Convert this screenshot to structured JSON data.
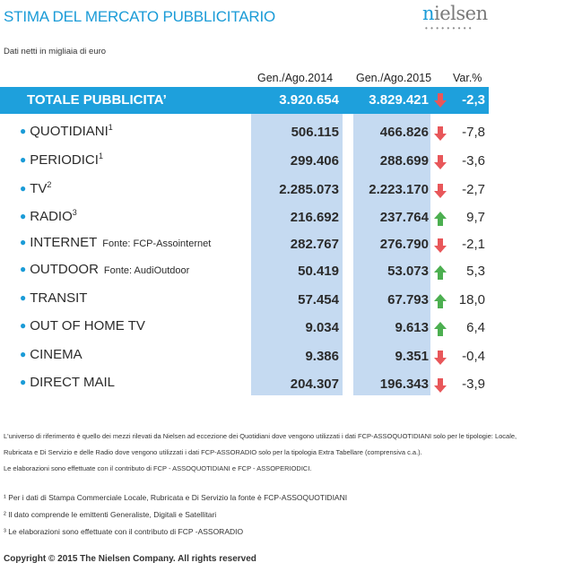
{
  "header": {
    "title": "STIMA DEL MERCATO PUBBLICITARIO",
    "logo_text_first": "n",
    "logo_text_rest": "ielsen",
    "logo_dots": "•••••••••",
    "subtitle": "Dati netti in migliaia di euro"
  },
  "table": {
    "columns": [
      "Gen./Ago.2014",
      "Gen./Ago.2015",
      "Var.%"
    ],
    "total": {
      "label": "TOTALE PUBBLICITA’",
      "v2014": "3.920.654",
      "v2015": "3.829.421",
      "trend": "down",
      "var": "-2,3"
    },
    "rows": [
      {
        "label": "QUOTIDIANI",
        "sup": "1",
        "source": "",
        "v2014": "506.115",
        "v2015": "466.826",
        "trend": "down",
        "var": "-7,8"
      },
      {
        "label": "PERIODICI",
        "sup": "1",
        "source": "",
        "v2014": "299.406",
        "v2015": "288.699",
        "trend": "down",
        "var": "-3,6"
      },
      {
        "label": "TV",
        "sup": "2",
        "source": "",
        "v2014": "2.285.073",
        "v2015": "2.223.170",
        "trend": "down",
        "var": "-2,7"
      },
      {
        "label": "RADIO",
        "sup": "3",
        "source": "",
        "v2014": "216.692",
        "v2015": "237.764",
        "trend": "up",
        "var": "9,7"
      },
      {
        "label": "INTERNET",
        "sup": "",
        "source": "Fonte: FCP-Assointernet",
        "v2014": "282.767",
        "v2015": "276.790",
        "trend": "down",
        "var": "-2,1"
      },
      {
        "label": "OUTDOOR",
        "sup": "",
        "source": "Fonte: AudiOutdoor",
        "v2014": "50.419",
        "v2015": "53.073",
        "trend": "up",
        "var": "5,3"
      },
      {
        "label": "TRANSIT",
        "sup": "",
        "source": "",
        "v2014": "57.454",
        "v2015": "67.793",
        "trend": "up",
        "var": "18,0"
      },
      {
        "label": "OUT OF HOME TV",
        "sup": "",
        "source": "",
        "v2014": "9.034",
        "v2015": "9.613",
        "trend": "up",
        "var": "6,4"
      },
      {
        "label": "CINEMA",
        "sup": "",
        "source": "",
        "v2014": "9.386",
        "v2015": "9.351",
        "trend": "down",
        "var": "-0,4"
      },
      {
        "label": "DIRECT MAIL",
        "sup": "",
        "source": "",
        "v2014": "204.307",
        "v2015": "196.343",
        "trend": "down",
        "var": "-3,9"
      }
    ]
  },
  "notes": [
    "L'universo di riferimento è quello dei mezzi rilevati da Nielsen ad eccezione dei Quotidiani dove vengono utilizzati i dati FCP-ASSOQUOTIDIANI solo per le tipologie: Locale,",
    "Rubricata e Di Servizio e delle Radio dove vengono utilizzati i dati FCP-ASSORADIO solo per la tipologia Extra Tabellare (comprensiva c.a.).",
    "Le elaborazioni sono effettuate con il contributo di FCP - ASSOQUOTIDIANI e FCP - ASSOPERIODICI."
  ],
  "footnotes": [
    "¹  Per i dati di Stampa Commerciale Locale, Rubricata e Di Servizio la fonte è  FCP-ASSOQUOTIDIANI",
    "²  Il dato comprende le emittenti Generaliste, Digitali e Satellitari",
    "³  Le elaborazioni sono effettuate con il contributo di FCP -ASSORADIO"
  ],
  "copyright": "Copyright © 2015 The Nielsen Company. All rights reserved",
  "colors": {
    "accent": "#1ea0dc",
    "column_bg": "#c5daf1",
    "up": "#4caf50",
    "down": "#e8575a"
  }
}
